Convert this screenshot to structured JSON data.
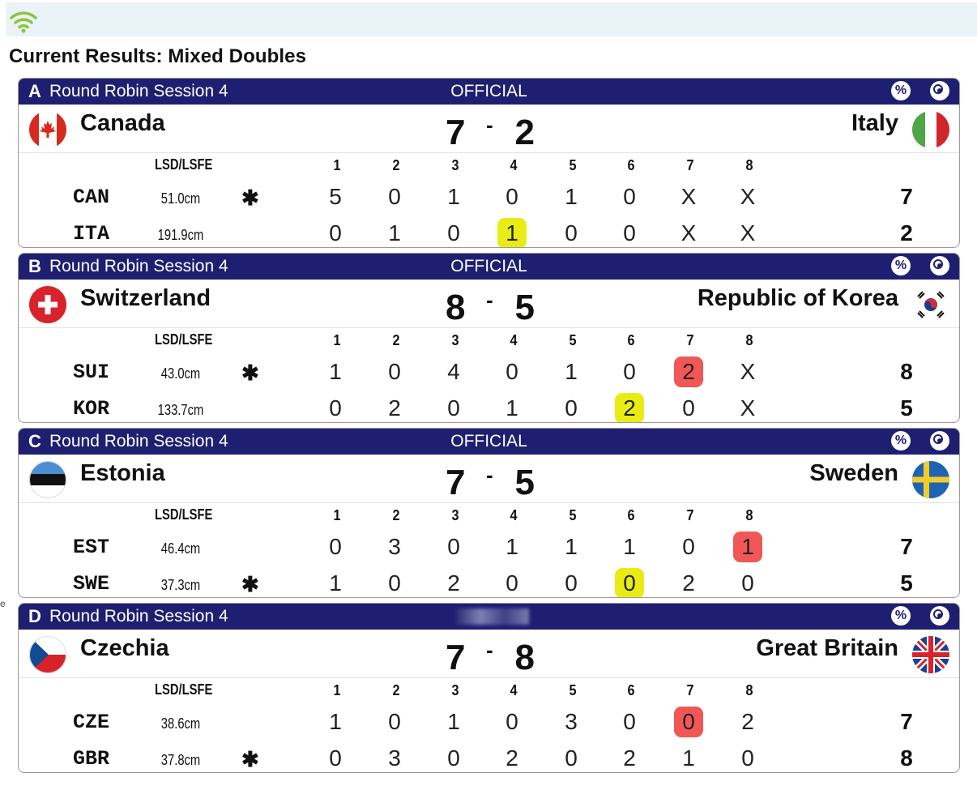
{
  "page": {
    "title": "Current Results: Mixed Doubles",
    "left_edge_glyph": "e"
  },
  "icons": {
    "wifi": "wifi-icon",
    "percent": "percent-icon",
    "target": "target-icon"
  },
  "colors": {
    "header_bg": "#1f1f72",
    "topbar_bg": "#eaf3f8",
    "highlight_yellow": "#e9ec14",
    "highlight_red": "#f25757",
    "wifi": "#8ec33c"
  },
  "columns": {
    "lsd_label": "LSD/LSFE",
    "ends": [
      "1",
      "2",
      "3",
      "4",
      "5",
      "6",
      "7",
      "8"
    ]
  },
  "games": [
    {
      "sheet": "A",
      "session": "Round Robin Session 4",
      "status": "OFFICIAL",
      "team_left": {
        "name": "Canada",
        "flag": "Canada",
        "score": "7"
      },
      "team_right": {
        "name": "Italy",
        "flag": "Italy",
        "score": "2"
      },
      "score_sep": "-",
      "rows": [
        {
          "abbr": "CAN",
          "lsd": "51.0cm",
          "hammer": "✱",
          "ends": [
            "5",
            "0",
            "1",
            "0",
            "1",
            "0",
            "X",
            "X"
          ],
          "total": "7",
          "highlights": {}
        },
        {
          "abbr": "ITA",
          "lsd": "191.9cm",
          "hammer": "",
          "ends": [
            "0",
            "1",
            "0",
            "1",
            "0",
            "0",
            "X",
            "X"
          ],
          "total": "2",
          "highlights": {
            "3": "yellow"
          }
        }
      ]
    },
    {
      "sheet": "B",
      "session": "Round Robin Session 4",
      "status": "OFFICIAL",
      "team_left": {
        "name": "Switzerland",
        "flag": "Switzerland",
        "score": "8"
      },
      "team_right": {
        "name": "Republic of Korea",
        "flag": "Korea",
        "score": "5"
      },
      "score_sep": "-",
      "rows": [
        {
          "abbr": "SUI",
          "lsd": "43.0cm",
          "hammer": "✱",
          "ends": [
            "1",
            "0",
            "4",
            "0",
            "1",
            "0",
            "2",
            "X"
          ],
          "total": "8",
          "highlights": {
            "6": "red"
          }
        },
        {
          "abbr": "KOR",
          "lsd": "133.7cm",
          "hammer": "",
          "ends": [
            "0",
            "2",
            "0",
            "1",
            "0",
            "2",
            "0",
            "X"
          ],
          "total": "5",
          "highlights": {
            "5": "yellow"
          }
        }
      ]
    },
    {
      "sheet": "C",
      "session": "Round Robin Session 4",
      "status": "OFFICIAL",
      "team_left": {
        "name": "Estonia",
        "flag": "Estonia",
        "score": "7"
      },
      "team_right": {
        "name": "Sweden",
        "flag": "Sweden",
        "score": "5"
      },
      "score_sep": "-",
      "rows": [
        {
          "abbr": "EST",
          "lsd": "46.4cm",
          "hammer": "",
          "ends": [
            "0",
            "3",
            "0",
            "1",
            "1",
            "1",
            "0",
            "1"
          ],
          "total": "7",
          "highlights": {
            "7": "red"
          }
        },
        {
          "abbr": "SWE",
          "lsd": "37.3cm",
          "hammer": "✱",
          "ends": [
            "1",
            "0",
            "2",
            "0",
            "0",
            "0",
            "2",
            "0"
          ],
          "total": "5",
          "highlights": {
            "5": "yellow"
          }
        }
      ]
    },
    {
      "sheet": "D",
      "session": "Round Robin Session 4",
      "status": "",
      "team_left": {
        "name": "Czechia",
        "flag": "Czechia",
        "score": "7"
      },
      "team_right": {
        "name": "Great Britain",
        "flag": "GreatBritain",
        "score": "8"
      },
      "score_sep": "-",
      "rows": [
        {
          "abbr": "CZE",
          "lsd": "38.6cm",
          "hammer": "",
          "ends": [
            "1",
            "0",
            "1",
            "0",
            "3",
            "0",
            "0",
            "2"
          ],
          "total": "7",
          "highlights": {
            "6": "red"
          }
        },
        {
          "abbr": "GBR",
          "lsd": "37.8cm",
          "hammer": "✱",
          "ends": [
            "0",
            "3",
            "0",
            "2",
            "0",
            "2",
            "1",
            "0"
          ],
          "total": "8",
          "highlights": {}
        }
      ]
    }
  ]
}
